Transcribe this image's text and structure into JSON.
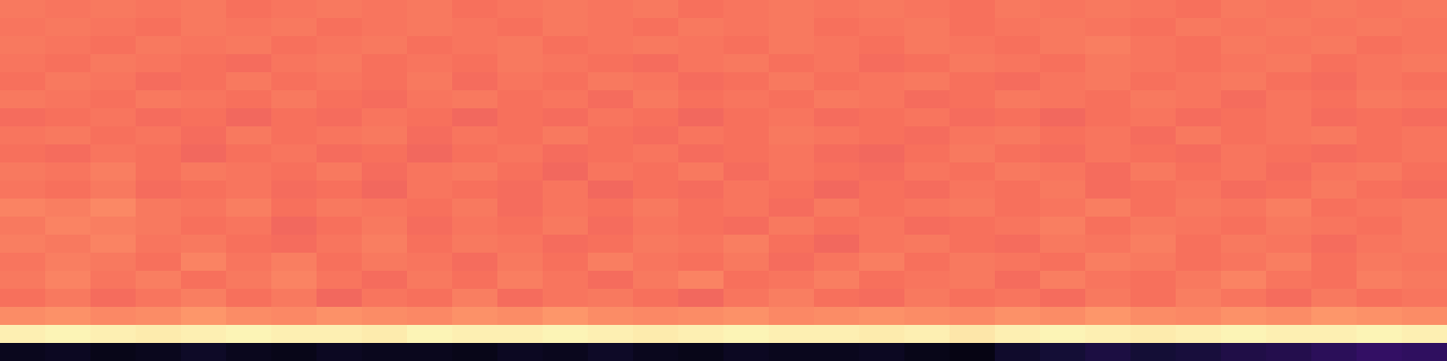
{
  "chart_data": {
    "type": "heatmap",
    "tick_labels": false,
    "color_range": [
      0,
      1
    ],
    "cells": [
      [
        0.05,
        0.06,
        0.04,
        0.05,
        0.07,
        0.05,
        0.04,
        0.06,
        0.05,
        0.05,
        0.04,
        0.06,
        0.05,
        0.07,
        0.05,
        0.04,
        0.06,
        0.05,
        0.05,
        0.06,
        0.04,
        0.03,
        0.08,
        0.1,
        0.12,
        0.1,
        0.11,
        0.13,
        0.14,
        0.16,
        0.18,
        0.17
      ],
      [
        0.97,
        0.98,
        0.97,
        0.96,
        0.97,
        0.98,
        0.97,
        0.97,
        0.96,
        0.98,
        0.97,
        0.97,
        0.98,
        0.97,
        0.96,
        0.97,
        0.98,
        0.97,
        0.97,
        0.96,
        0.97,
        0.95,
        0.97,
        0.98,
        0.97,
        0.96,
        0.97,
        0.98,
        0.97,
        0.97,
        0.98,
        0.97
      ],
      [
        0.76,
        0.77,
        0.75,
        0.76,
        0.78,
        0.76,
        0.75,
        0.77,
        0.76,
        0.75,
        0.77,
        0.76,
        0.78,
        0.76,
        0.75,
        0.76,
        0.77,
        0.75,
        0.76,
        0.77,
        0.76,
        0.75,
        0.77,
        0.76,
        0.78,
        0.76,
        0.75,
        0.77,
        0.76,
        0.78,
        0.77,
        0.76
      ],
      [
        0.7,
        0.72,
        0.69,
        0.71,
        0.73,
        0.7,
        0.72,
        0.68,
        0.71,
        0.7,
        0.73,
        0.69,
        0.71,
        0.72,
        0.7,
        0.68,
        0.71,
        0.73,
        0.7,
        0.69,
        0.72,
        0.7,
        0.71,
        0.69,
        0.72,
        0.7,
        0.73,
        0.71,
        0.69,
        0.72,
        0.7,
        0.71
      ],
      [
        0.72,
        0.74,
        0.71,
        0.73,
        0.7,
        0.72,
        0.74,
        0.71,
        0.69,
        0.72,
        0.7,
        0.73,
        0.71,
        0.69,
        0.72,
        0.74,
        0.7,
        0.71,
        0.73,
        0.7,
        0.71,
        0.72,
        0.69,
        0.73,
        0.71,
        0.7,
        0.72,
        0.74,
        0.71,
        0.7,
        0.73,
        0.72
      ],
      [
        0.71,
        0.73,
        0.72,
        0.7,
        0.74,
        0.71,
        0.73,
        0.7,
        0.72,
        0.71,
        0.69,
        0.72,
        0.7,
        0.73,
        0.71,
        0.7,
        0.72,
        0.69,
        0.71,
        0.73,
        0.7,
        0.72,
        0.71,
        0.7,
        0.73,
        0.72,
        0.7,
        0.71,
        0.73,
        0.7,
        0.72,
        0.71
      ],
      [
        0.73,
        0.72,
        0.74,
        0.71,
        0.72,
        0.7,
        0.69,
        0.71,
        0.73,
        0.7,
        0.72,
        0.71,
        0.69,
        0.7,
        0.72,
        0.71,
        0.73,
        0.7,
        0.68,
        0.71,
        0.72,
        0.7,
        0.69,
        0.72,
        0.71,
        0.73,
        0.7,
        0.72,
        0.71,
        0.69,
        0.71,
        0.72
      ],
      [
        0.72,
        0.74,
        0.73,
        0.72,
        0.7,
        0.71,
        0.68,
        0.7,
        0.72,
        0.69,
        0.71,
        0.7,
        0.72,
        0.69,
        0.71,
        0.7,
        0.69,
        0.72,
        0.7,
        0.71,
        0.69,
        0.7,
        0.71,
        0.73,
        0.7,
        0.72,
        0.71,
        0.7,
        0.72,
        0.71,
        0.7,
        0.72
      ],
      [
        0.74,
        0.73,
        0.75,
        0.72,
        0.71,
        0.73,
        0.7,
        0.72,
        0.71,
        0.7,
        0.72,
        0.69,
        0.71,
        0.7,
        0.72,
        0.7,
        0.71,
        0.69,
        0.72,
        0.7,
        0.71,
        0.72,
        0.7,
        0.71,
        0.73,
        0.7,
        0.72,
        0.71,
        0.73,
        0.7,
        0.71,
        0.72
      ],
      [
        0.71,
        0.7,
        0.72,
        0.69,
        0.7,
        0.71,
        0.69,
        0.7,
        0.68,
        0.71,
        0.7,
        0.69,
        0.71,
        0.68,
        0.7,
        0.69,
        0.71,
        0.7,
        0.68,
        0.7,
        0.69,
        0.71,
        0.7,
        0.72,
        0.69,
        0.7,
        0.71,
        0.69,
        0.7,
        0.72,
        0.7,
        0.69
      ],
      [
        0.72,
        0.71,
        0.73,
        0.7,
        0.72,
        0.71,
        0.7,
        0.72,
        0.69,
        0.71,
        0.72,
        0.7,
        0.68,
        0.71,
        0.7,
        0.72,
        0.69,
        0.71,
        0.7,
        0.69,
        0.71,
        0.7,
        0.72,
        0.71,
        0.69,
        0.72,
        0.7,
        0.71,
        0.69,
        0.71,
        0.72,
        0.7
      ],
      [
        0.7,
        0.69,
        0.71,
        0.7,
        0.68,
        0.7,
        0.71,
        0.69,
        0.7,
        0.68,
        0.7,
        0.71,
        0.69,
        0.7,
        0.71,
        0.69,
        0.7,
        0.71,
        0.69,
        0.68,
        0.7,
        0.72,
        0.7,
        0.69,
        0.71,
        0.7,
        0.69,
        0.71,
        0.7,
        0.69,
        0.7,
        0.71
      ],
      [
        0.71,
        0.72,
        0.7,
        0.71,
        0.69,
        0.72,
        0.7,
        0.71,
        0.72,
        0.69,
        0.71,
        0.7,
        0.72,
        0.7,
        0.69,
        0.71,
        0.7,
        0.72,
        0.71,
        0.7,
        0.69,
        0.71,
        0.72,
        0.7,
        0.71,
        0.69,
        0.72,
        0.7,
        0.71,
        0.72,
        0.7,
        0.71
      ],
      [
        0.69,
        0.7,
        0.71,
        0.69,
        0.7,
        0.68,
        0.7,
        0.69,
        0.71,
        0.7,
        0.68,
        0.7,
        0.69,
        0.71,
        0.7,
        0.68,
        0.7,
        0.71,
        0.69,
        0.7,
        0.71,
        0.69,
        0.7,
        0.68,
        0.7,
        0.71,
        0.69,
        0.7,
        0.71,
        0.69,
        0.7,
        0.69
      ],
      [
        0.72,
        0.71,
        0.7,
        0.72,
        0.71,
        0.7,
        0.72,
        0.7,
        0.69,
        0.71,
        0.72,
        0.7,
        0.71,
        0.69,
        0.72,
        0.7,
        0.71,
        0.7,
        0.72,
        0.71,
        0.69,
        0.7,
        0.72,
        0.71,
        0.7,
        0.72,
        0.71,
        0.69,
        0.71,
        0.7,
        0.72,
        0.71
      ],
      [
        0.7,
        0.72,
        0.71,
        0.69,
        0.7,
        0.72,
        0.7,
        0.71,
        0.7,
        0.72,
        0.69,
        0.71,
        0.7,
        0.72,
        0.71,
        0.69,
        0.7,
        0.72,
        0.7,
        0.71,
        0.72,
        0.7,
        0.69,
        0.71,
        0.72,
        0.7,
        0.71,
        0.72,
        0.7,
        0.69,
        0.71,
        0.7
      ],
      [
        0.71,
        0.7,
        0.72,
        0.71,
        0.7,
        0.69,
        0.71,
        0.72,
        0.7,
        0.71,
        0.7,
        0.72,
        0.71,
        0.7,
        0.69,
        0.71,
        0.72,
        0.7,
        0.71,
        0.69,
        0.7,
        0.72,
        0.71,
        0.7,
        0.72,
        0.71,
        0.7,
        0.71,
        0.72,
        0.7,
        0.71,
        0.72
      ],
      [
        0.72,
        0.71,
        0.7,
        0.72,
        0.71,
        0.72,
        0.7,
        0.71,
        0.72,
        0.7,
        0.71,
        0.72,
        0.7,
        0.71,
        0.72,
        0.71,
        0.7,
        0.72,
        0.71,
        0.7,
        0.72,
        0.71,
        0.7,
        0.72,
        0.73,
        0.71,
        0.7,
        0.72,
        0.71,
        0.72,
        0.7,
        0.71
      ],
      [
        0.71,
        0.72,
        0.71,
        0.7,
        0.72,
        0.71,
        0.72,
        0.7,
        0.71,
        0.72,
        0.71,
        0.7,
        0.72,
        0.71,
        0.7,
        0.72,
        0.71,
        0.72,
        0.7,
        0.71,
        0.72,
        0.7,
        0.71,
        0.72,
        0.71,
        0.7,
        0.72,
        0.71,
        0.72,
        0.71,
        0.72,
        0.71
      ],
      [
        0.72,
        0.71,
        0.72,
        0.71,
        0.72,
        0.7,
        0.71,
        0.72,
        0.71,
        0.72,
        0.7,
        0.71,
        0.72,
        0.71,
        0.72,
        0.7,
        0.71,
        0.72,
        0.71,
        0.72,
        0.71,
        0.7,
        0.72,
        0.71,
        0.72,
        0.71,
        0.7,
        0.72,
        0.71,
        0.72,
        0.71,
        0.72
      ]
    ]
  }
}
